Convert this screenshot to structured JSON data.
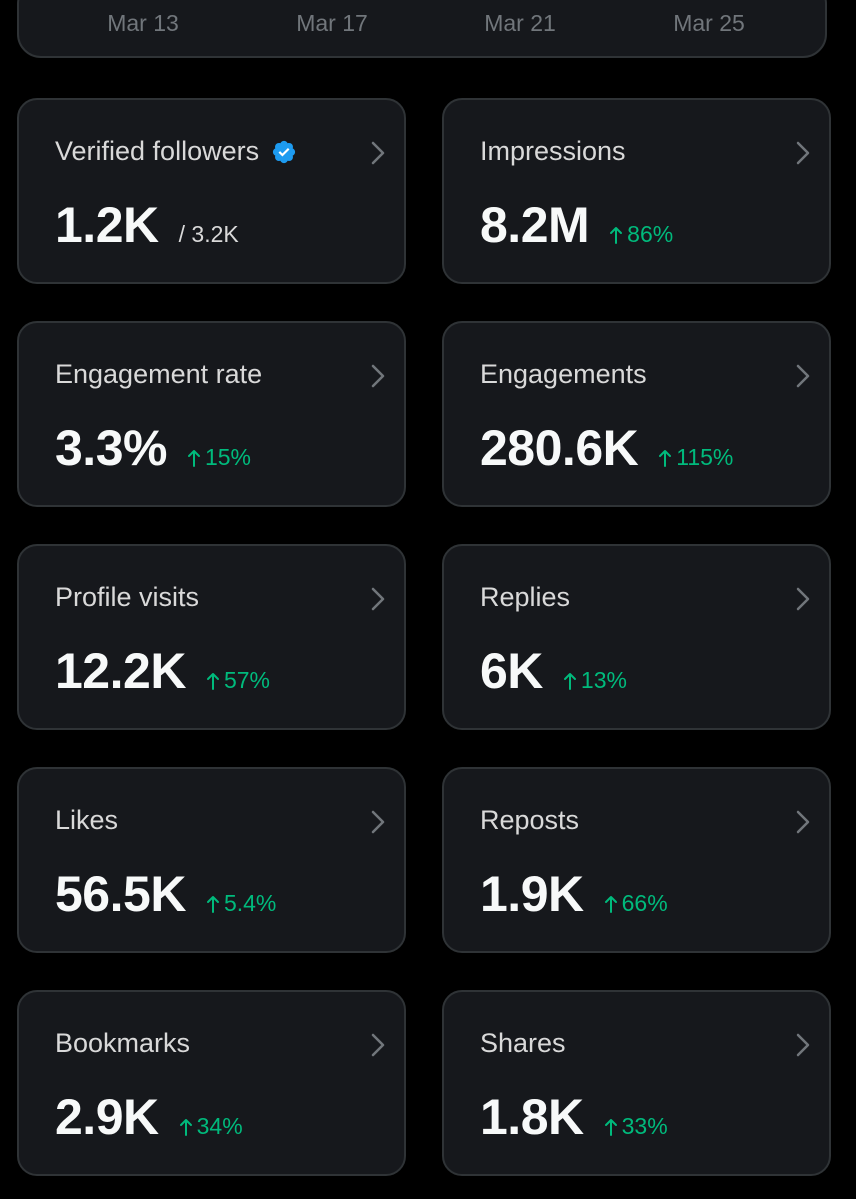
{
  "chart": {
    "x_labels": [
      "Mar 13",
      "Mar 17",
      "Mar 21",
      "Mar 25"
    ]
  },
  "colors": {
    "background": "#000000",
    "card": "#16181c",
    "border": "#2f3336",
    "positive": "#00ba7c",
    "verified": "#1d9bf0"
  },
  "cards": [
    {
      "title": "Verified followers",
      "value": "1.2K",
      "sub": "/ 3.2K",
      "change": "",
      "verified_icon": "verified-badge-icon"
    },
    {
      "title": "Impressions",
      "value": "8.2M",
      "sub": "",
      "change": "86%"
    },
    {
      "title": "Engagement rate",
      "value": "3.3%",
      "sub": "",
      "change": "15%"
    },
    {
      "title": "Engagements",
      "value": "280.6K",
      "sub": "",
      "change": "115%"
    },
    {
      "title": "Profile visits",
      "value": "12.2K",
      "sub": "",
      "change": "57%"
    },
    {
      "title": "Replies",
      "value": "6K",
      "sub": "",
      "change": "13%"
    },
    {
      "title": "Likes",
      "value": "56.5K",
      "sub": "",
      "change": "5.4%"
    },
    {
      "title": "Reposts",
      "value": "1.9K",
      "sub": "",
      "change": "66%"
    },
    {
      "title": "Bookmarks",
      "value": "2.9K",
      "sub": "",
      "change": "34%"
    },
    {
      "title": "Shares",
      "value": "1.8K",
      "sub": "",
      "change": "33%"
    }
  ]
}
